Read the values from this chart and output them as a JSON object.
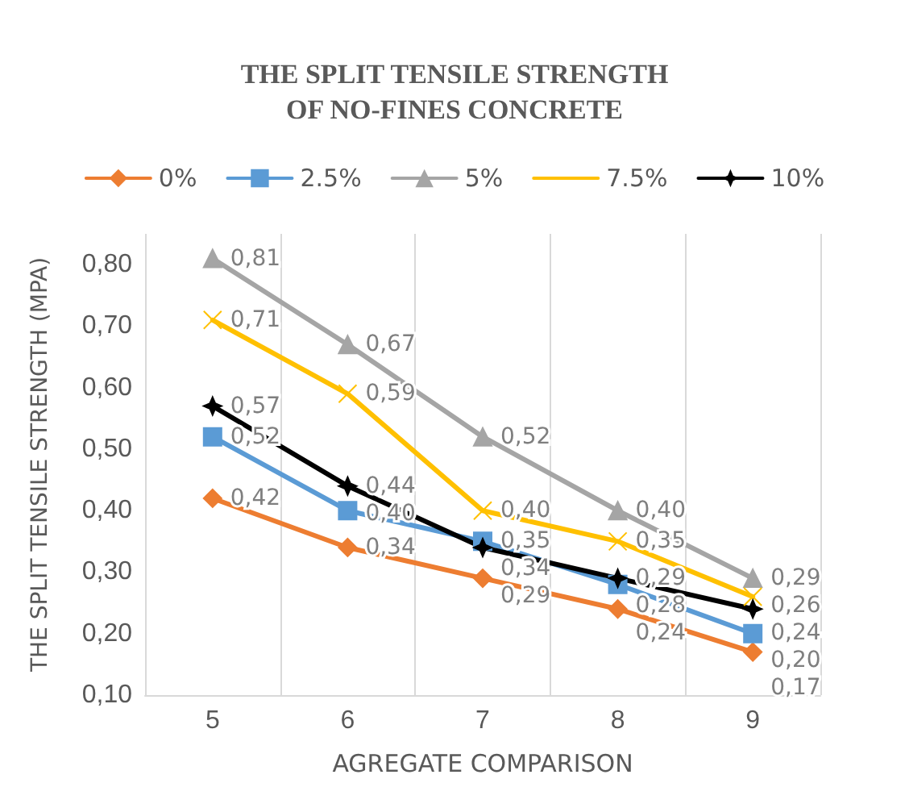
{
  "chart_data": {
    "type": "line",
    "title": "THE SPLIT TENSILE STRENGTH\nOF NO-FINES CONCRETE",
    "xlabel": "AGREGATE COMPARISON",
    "ylabel": "THE SPLIT TENSILE STRENGTH (MPA)",
    "categories": [
      "5",
      "6",
      "7",
      "8",
      "9"
    ],
    "series": [
      {
        "name": "0%",
        "color": "#ed7d31",
        "marker": "diamond",
        "values": [
          0.42,
          0.34,
          0.29,
          0.24,
          0.17
        ],
        "value_labels": [
          "0,42",
          "0,34",
          "0,29",
          "0,24",
          "0,17"
        ]
      },
      {
        "name": "2.5%",
        "color": "#5b9bd5",
        "marker": "square",
        "values": [
          0.52,
          0.4,
          0.35,
          0.28,
          0.2
        ],
        "value_labels": [
          "0,52",
          "0,40",
          "0,35",
          "0,28",
          "0,20"
        ]
      },
      {
        "name": "5%",
        "color": "#a5a5a5",
        "marker": "triangle",
        "values": [
          0.81,
          0.67,
          0.52,
          0.4,
          0.29
        ],
        "value_labels": [
          "0,81",
          "0,67",
          "0,52",
          "0,40",
          "0,29"
        ]
      },
      {
        "name": "7.5%",
        "color": "#ffc000",
        "marker": "cross",
        "values": [
          0.71,
          0.59,
          0.4,
          0.35,
          0.26
        ],
        "value_labels": [
          "0,71",
          "0,59",
          "0,40",
          "0,35",
          "0,26"
        ]
      },
      {
        "name": "10%",
        "color": "#000000",
        "marker": "star",
        "values": [
          0.57,
          0.44,
          0.34,
          0.29,
          0.24
        ],
        "value_labels": [
          "0,57",
          "0,44",
          "0,34",
          "0,29",
          "0,24"
        ]
      }
    ],
    "ylim": [
      0.1,
      0.85
    ],
    "yticks": [
      {
        "value": 0.1,
        "label": "0,10"
      },
      {
        "value": 0.2,
        "label": "0,20"
      },
      {
        "value": 0.3,
        "label": "0,30"
      },
      {
        "value": 0.4,
        "label": "0,40"
      },
      {
        "value": 0.5,
        "label": "0,50"
      },
      {
        "value": 0.6,
        "label": "0,60"
      },
      {
        "value": 0.7,
        "label": "0,70"
      },
      {
        "value": 0.8,
        "label": "0,80"
      }
    ],
    "grid": "x",
    "legend": "top",
    "line_style": "solid"
  }
}
